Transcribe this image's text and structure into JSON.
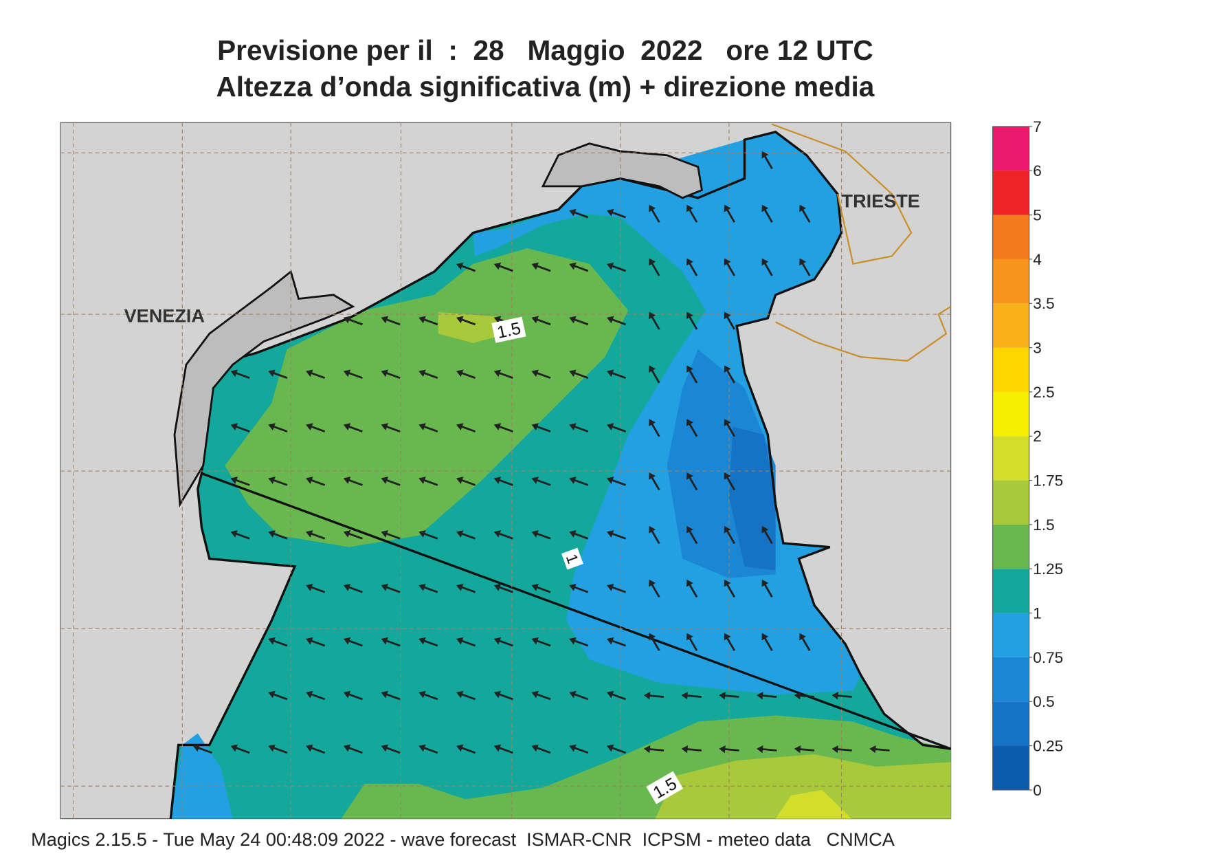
{
  "header": {
    "title_line1": "Previsione per il  :  28   Maggio  2022   ore 12 UTC",
    "title_line2": "Altezza d’onda significativa (m) + direzione media"
  },
  "map": {
    "place_labels": [
      "VENEZIA",
      "TRIESTE"
    ],
    "contour_labels": [
      "1.5",
      "1",
      "1.5"
    ]
  },
  "legend": {
    "ticks": [
      0,
      0.25,
      0.5,
      0.75,
      1,
      1.25,
      1.5,
      1.75,
      2,
      2.5,
      3,
      3.5,
      4,
      5,
      6,
      7
    ],
    "colors": [
      "#0b5cac",
      "#1672c4",
      "#1b86d4",
      "#22a0e2",
      "#14a89c",
      "#69b84f",
      "#a7c93b",
      "#d3dd2c",
      "#f6f000",
      "#ffd500",
      "#f9b11b",
      "#f7941d",
      "#f47a20",
      "#ec2426",
      "#ec1a6c"
    ]
  },
  "footer": "Magics 2.15.5 - Tue May 24 00:48:09 2022 - wave forecast  ISMAR-CNR  ICPSM - meteo data   CNMCA"
}
